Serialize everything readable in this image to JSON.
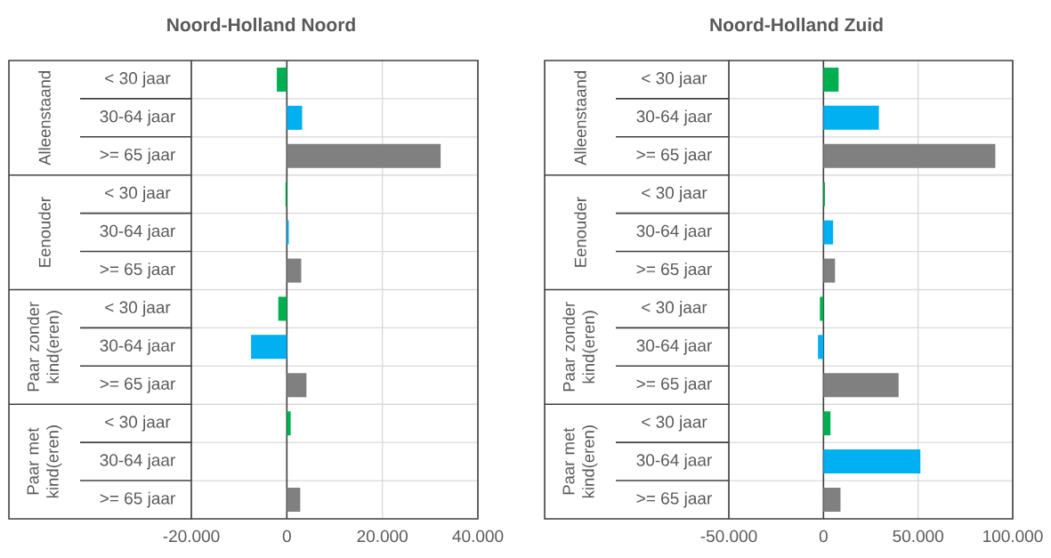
{
  "chart_data": [
    {
      "type": "bar",
      "orientation": "horizontal",
      "title": "Noord-Holland Noord",
      "categories": [
        "< 30 jaar",
        "30-64 jaar",
        ">= 65 jaar",
        "< 30 jaar",
        "30-64 jaar",
        ">= 65 jaar",
        "< 30 jaar",
        "30-64 jaar",
        ">= 65 jaar",
        "< 30 jaar",
        "30-64 jaar",
        ">= 65 jaar"
      ],
      "annotations": [
        "Alleenstaand",
        "Eenouder",
        "Paar zonder kind(eren)",
        "Paar met kind(eren)"
      ],
      "values": [
        -2100,
        3200,
        32200,
        -300,
        400,
        3000,
        -1800,
        -7500,
        4100,
        800,
        0,
        2800
      ],
      "colors": [
        "#00b050",
        "#00b0f0",
        "#808080",
        "#00b050",
        "#00b0f0",
        "#808080",
        "#00b050",
        "#00b0f0",
        "#808080",
        "#00b050",
        "#00b0f0",
        "#808080"
      ],
      "xlim": [
        -20000,
        40000
      ],
      "xticks": [
        {
          "value": -20000,
          "label": "-20.000"
        },
        0,
        {
          "value": 20000,
          "label": "20.000"
        },
        {
          "value": 40000,
          "label": "40.000"
        }
      ],
      "grid": true
    },
    {
      "type": "bar",
      "orientation": "horizontal",
      "title": "Noord-Holland Zuid",
      "categories": [
        "< 30 jaar",
        "30-64 jaar",
        ">= 65 jaar",
        "< 30 jaar",
        "30-64 jaar",
        ">= 65 jaar",
        "< 30 jaar",
        "30-64 jaar",
        ">= 65 jaar",
        "< 30 jaar",
        "30-64 jaar",
        ">= 65 jaar"
      ],
      "annotations": [
        "Alleenstaand",
        "Eenouder",
        "Paar zonder kind(eren)",
        "Paar met kind(eren)"
      ],
      "values": [
        8000,
        29300,
        90800,
        800,
        5100,
        6100,
        -1900,
        -2900,
        39700,
        3700,
        51200,
        9000
      ],
      "colors": [
        "#00b050",
        "#00b0f0",
        "#808080",
        "#00b050",
        "#00b0f0",
        "#808080",
        "#00b050",
        "#00b0f0",
        "#808080",
        "#00b050",
        "#00b0f0",
        "#808080"
      ],
      "xlim": [
        -50000,
        100000
      ],
      "xticks": [
        {
          "value": -50000,
          "label": "-50.000"
        },
        0,
        {
          "value": 50000,
          "label": "50.000"
        },
        {
          "value": 100000,
          "label": "100.000"
        }
      ],
      "grid": true
    }
  ]
}
